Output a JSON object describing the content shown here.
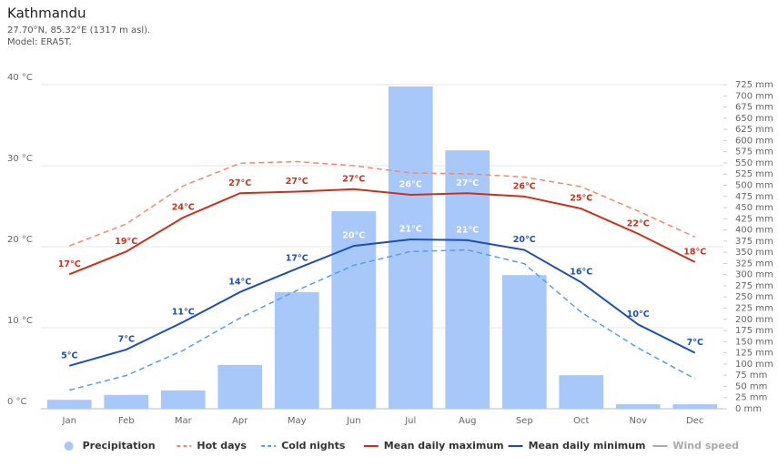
{
  "chart_data": {
    "type": "combo",
    "title": "Kathmandu",
    "subtitle": [
      "27.70°N, 85.32°E (1317 m asl).",
      "Model: ERA5T."
    ],
    "categories": [
      "Jan",
      "Feb",
      "Mar",
      "Apr",
      "May",
      "Jun",
      "Jul",
      "Aug",
      "Sep",
      "Oct",
      "Nov",
      "Dec"
    ],
    "ylim": [
      0,
      40
    ],
    "yticks": [
      {
        "value": 0,
        "label": "0 °C"
      },
      {
        "value": 10,
        "label": "10 °C"
      },
      {
        "value": 20,
        "label": "20 °C"
      },
      {
        "value": 30,
        "label": "30 °C"
      },
      {
        "value": 40,
        "label": "40 °C"
      }
    ],
    "y2lim": [
      0,
      725
    ],
    "y2ticks": [
      {
        "value": 0,
        "label": "0 mm"
      },
      {
        "value": 25,
        "label": "25 mm"
      },
      {
        "value": 50,
        "label": "50 mm"
      },
      {
        "value": 75,
        "label": "75 mm"
      },
      {
        "value": 100,
        "label": "100 mm"
      },
      {
        "value": 125,
        "label": "125 mm"
      },
      {
        "value": 150,
        "label": "150 mm"
      },
      {
        "value": 175,
        "label": "175 mm"
      },
      {
        "value": 200,
        "label": "200 mm"
      },
      {
        "value": 225,
        "label": "225 mm"
      },
      {
        "value": 250,
        "label": "250 mm"
      },
      {
        "value": 275,
        "label": "275 mm"
      },
      {
        "value": 300,
        "label": "300 mm"
      },
      {
        "value": 325,
        "label": "325 mm"
      },
      {
        "value": 350,
        "label": "350 mm"
      },
      {
        "value": 375,
        "label": "375 mm"
      },
      {
        "value": 400,
        "label": "400 mm"
      },
      {
        "value": 425,
        "label": "425 mm"
      },
      {
        "value": 450,
        "label": "450 mm"
      },
      {
        "value": 475,
        "label": "475 mm"
      },
      {
        "value": 500,
        "label": "500 mm"
      },
      {
        "value": 525,
        "label": "525 mm"
      },
      {
        "value": 550,
        "label": "550 mm"
      },
      {
        "value": 575,
        "label": "575 mm"
      },
      {
        "value": 600,
        "label": "600 mm"
      },
      {
        "value": 625,
        "label": "625 mm"
      },
      {
        "value": 650,
        "label": "650 mm"
      },
      {
        "value": 675,
        "label": "675 mm"
      },
      {
        "value": 700,
        "label": "700 mm"
      },
      {
        "value": 725,
        "label": "725 mm"
      }
    ],
    "grid": true,
    "series": [
      {
        "name": "Precipitation",
        "type": "bar",
        "axis": "y2",
        "color": "#a8c8fa",
        "values": [
          20,
          31,
          41,
          98,
          261,
          442,
          721,
          578,
          299,
          75,
          10,
          10
        ]
      },
      {
        "name": "Hot days",
        "type": "line",
        "dashed": true,
        "color": "#f08a70",
        "values": [
          20.1,
          22.8,
          27.5,
          30.3,
          30.5,
          30.0,
          29.1,
          29.0,
          28.6,
          27.4,
          24.4,
          21.2
        ]
      },
      {
        "name": "Cold nights",
        "type": "line",
        "dashed": true,
        "color": "#5a9ee0",
        "values": [
          2.3,
          4.1,
          7.2,
          11.2,
          14.6,
          17.7,
          19.4,
          19.6,
          17.9,
          11.9,
          7.5,
          3.7
        ]
      },
      {
        "name": "Mean daily maximum",
        "type": "line",
        "dashed": false,
        "color": "#c8321e",
        "values": [
          16.6,
          19.4,
          23.6,
          26.6,
          26.8,
          27.1,
          26.4,
          26.6,
          26.2,
          24.7,
          21.6,
          18.1
        ],
        "value_labels": [
          "17°C",
          "19°C",
          "24°C",
          "27°C",
          "27°C",
          "27°C",
          "26°C",
          "27°C",
          "26°C",
          "25°C",
          "22°C",
          "18°C"
        ]
      },
      {
        "name": "Mean daily minimum",
        "type": "line",
        "dashed": false,
        "color": "#1f4fb0",
        "values": [
          5.3,
          7.3,
          10.7,
          14.4,
          17.3,
          20.1,
          20.9,
          20.8,
          19.6,
          15.6,
          10.4,
          6.9
        ],
        "value_labels": [
          "5°C",
          "7°C",
          "11°C",
          "14°C",
          "17°C",
          "20°C",
          "21°C",
          "21°C",
          "20°C",
          "16°C",
          "10°C",
          "7°C"
        ]
      },
      {
        "name": "Wind speed",
        "type": "legend-only",
        "color": "#aaaaaa"
      }
    ]
  }
}
